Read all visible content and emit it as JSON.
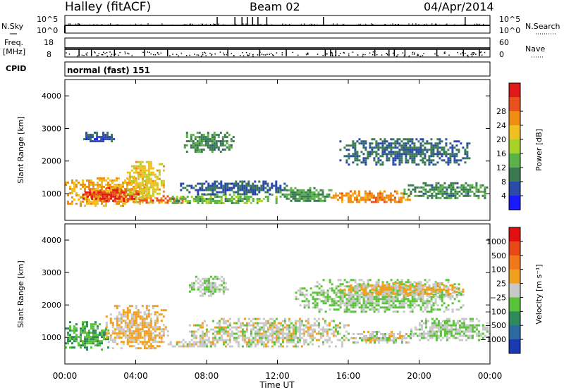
{
  "header": {
    "station": "Halley (fitACF)",
    "beam": "Beam 02",
    "date": "04/Apr/2014"
  },
  "strips": {
    "nsky": {
      "label": "N.Sky",
      "left_ticks": [
        "10^5",
        "10^0"
      ],
      "right_ticks": [
        "10^5",
        "10^0"
      ],
      "right_label": "N.Search",
      "spike_hours": [
        8.6,
        9.6,
        10.0,
        10.3,
        10.6,
        10.9,
        11.4,
        14.6,
        22.6
      ]
    },
    "freq": {
      "label_line1": "Freq.",
      "label_line2": "[MHz]",
      "left_ticks": [
        "18",
        "8"
      ],
      "right_ticks": [
        "60",
        "0"
      ],
      "right_label": "Nave",
      "tick_hours": [
        0.8,
        1.5,
        2.8,
        4.5,
        5.8,
        9.2,
        11.0,
        12.5,
        14.7,
        15.0,
        15.3,
        17.5,
        18.3,
        18.6,
        19.2,
        21.0,
        22.5,
        23.4
      ]
    },
    "cpid": {
      "label": "CPID",
      "value": "normal (fast) 151"
    }
  },
  "x_axis": {
    "label": "Time UT",
    "tick_labels": [
      "00:00",
      "04:00",
      "08:00",
      "12:00",
      "16:00",
      "20:00",
      "00:00"
    ],
    "range_hours": [
      0,
      24
    ]
  },
  "panels": [
    {
      "id": "power",
      "ylabel": "Slant Range [km]",
      "y_ticks": [
        "1000",
        "2000",
        "3000",
        "4000"
      ],
      "colorbar": {
        "label": "Power [dB]",
        "tick_labels": [
          "4",
          "8",
          "12",
          "16",
          "20",
          "24",
          "28"
        ],
        "colors": [
          "#1a1aff",
          "#2b4aa8",
          "#3a7a52",
          "#5ab248",
          "#a8d228",
          "#f0c020",
          "#f08c10",
          "#e8501e",
          "#e01818"
        ]
      }
    },
    {
      "id": "velocity",
      "ylabel": "Slant Range [km]",
      "y_ticks": [
        "1000",
        "2000",
        "3000",
        "4000"
      ],
      "colorbar": {
        "label": "Velocity [m s⁻¹]",
        "tick_labels": [
          "1000",
          "500",
          "100",
          "25",
          "−25",
          "−100",
          "−500",
          "−1000"
        ],
        "colors": [
          "#1a3ab4",
          "#2a6aa0",
          "#2e8a58",
          "#58c238",
          "#c8c8c8",
          "#f0a020",
          "#f07818",
          "#e84818",
          "#e01010"
        ]
      }
    }
  ],
  "chart_data": {
    "type": "heatmap",
    "title": "Halley (fitACF)  Beam 02  04/Apr/2014",
    "xlabel": "Time UT",
    "ylabel": "Slant Range [km]",
    "x_range_hours": [
      0,
      24
    ],
    "y_range_km": [
      180,
      4500
    ],
    "series": [
      {
        "name": "Power [dB]",
        "scale": [
          0,
          30
        ],
        "blobs": [
          {
            "t0": 0.0,
            "t1": 4.6,
            "r0": 650,
            "r1": 1500,
            "value": 20
          },
          {
            "t0": 1.0,
            "t1": 4.2,
            "r0": 800,
            "r1": 1200,
            "value": 27
          },
          {
            "t0": 3.5,
            "t1": 5.6,
            "r0": 750,
            "r1": 2000,
            "value": 18
          },
          {
            "t0": 4.2,
            "t1": 6.8,
            "r0": 700,
            "r1": 950,
            "value": 24
          },
          {
            "t0": 5.8,
            "t1": 12.0,
            "r0": 700,
            "r1": 1000,
            "value": 12
          },
          {
            "t0": 6.5,
            "t1": 12.5,
            "r0": 1000,
            "r1": 1400,
            "value": 6
          },
          {
            "t0": 12.0,
            "t1": 15.0,
            "r0": 800,
            "r1": 1200,
            "value": 10
          },
          {
            "t0": 15.0,
            "t1": 19.5,
            "r0": 750,
            "r1": 1100,
            "value": 22
          },
          {
            "t0": 19.0,
            "t1": 24.0,
            "r0": 850,
            "r1": 1350,
            "value": 9
          },
          {
            "t0": 6.6,
            "t1": 9.5,
            "r0": 2300,
            "r1": 2900,
            "value": 9
          },
          {
            "t0": 15.5,
            "t1": 22.8,
            "r0": 1900,
            "r1": 2700,
            "value": 7
          },
          {
            "t0": 0.8,
            "t1": 2.8,
            "r0": 2600,
            "r1": 2900,
            "value": 5
          }
        ]
      },
      {
        "name": "Velocity [m s-1]",
        "scale": [
          -1000,
          1000
        ],
        "blobs": [
          {
            "t0": 0.0,
            "t1": 2.5,
            "r0": 650,
            "r1": 1500,
            "value": -300
          },
          {
            "t0": 2.3,
            "t1": 5.8,
            "r0": 650,
            "r1": 2000,
            "value": 150
          },
          {
            "t0": 5.8,
            "t1": 8.5,
            "r0": 700,
            "r1": 950,
            "value": 60
          },
          {
            "t0": 7.0,
            "t1": 16.0,
            "r0": 700,
            "r1": 1600,
            "value": 0
          },
          {
            "t0": 16.0,
            "t1": 19.5,
            "r0": 850,
            "r1": 1200,
            "value": 0
          },
          {
            "t0": 19.5,
            "t1": 24.0,
            "r0": 900,
            "r1": 1600,
            "value": -100
          },
          {
            "t0": 7.0,
            "t1": 9.2,
            "r0": 2300,
            "r1": 2900,
            "value": -80
          },
          {
            "t0": 13.0,
            "t1": 22.5,
            "r0": 1800,
            "r1": 2800,
            "value": -120
          },
          {
            "t0": 15.5,
            "t1": 22.5,
            "r0": 2300,
            "r1": 2700,
            "value": 150
          }
        ]
      }
    ]
  }
}
